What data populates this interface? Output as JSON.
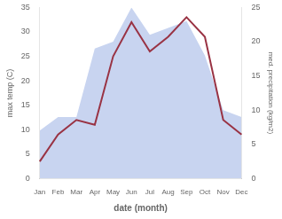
{
  "chart_data": {
    "type": "line",
    "xlabel": "date (month)",
    "ylabel": "max temp (C)",
    "y2label": "med. precipitation (kg/m2)",
    "categories": [
      "Jan",
      "Feb",
      "Mar",
      "Apr",
      "May",
      "Jun",
      "Jul",
      "Aug",
      "Sep",
      "Oct",
      "Nov",
      "Dec"
    ],
    "series": [
      {
        "type": "area",
        "axis": "y2",
        "color": "#c8d4f0",
        "values": [
          7.0,
          9.0,
          9.0,
          19.0,
          20.0,
          25.0,
          21.0,
          22.0,
          23.0,
          18.0,
          10.0,
          9.0
        ]
      },
      {
        "type": "line",
        "axis": "y",
        "color": "#993344",
        "values": [
          3.5,
          9.0,
          12.0,
          11.0,
          25.0,
          32.0,
          26.0,
          29.0,
          33.0,
          29.0,
          12.0,
          9.0
        ]
      }
    ],
    "ylim": [
      0,
      35
    ],
    "yticks": [
      0,
      5,
      10,
      15,
      20,
      25,
      30,
      35
    ],
    "y2lim": [
      0,
      25
    ],
    "y2ticks": [
      0,
      5,
      10,
      15,
      20,
      25
    ],
    "grid": false
  }
}
